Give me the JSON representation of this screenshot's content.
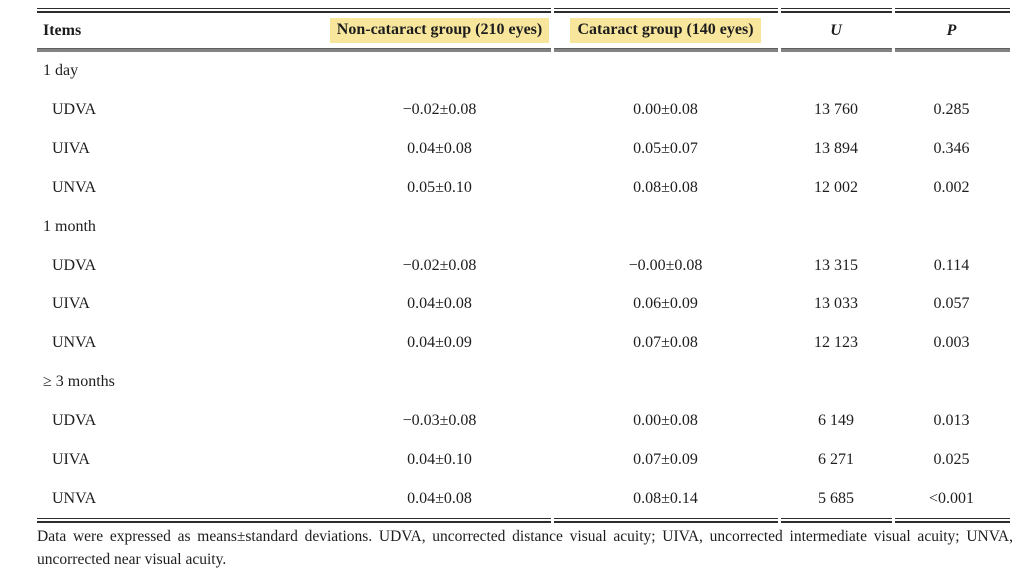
{
  "table": {
    "columns": {
      "items": "Items",
      "non_cataract": "Non-cataract group (210 eyes)",
      "cataract": "Cataract group (140 eyes)",
      "u": "U",
      "p": "P"
    },
    "highlight_color": "#F7E69C",
    "sections": [
      {
        "label": "1 day",
        "rows": [
          {
            "item": "UDVA",
            "non_cataract": "−0.02±0.08",
            "cataract": "0.00±0.08",
            "u": "13 760",
            "p": "0.285"
          },
          {
            "item": "UIVA",
            "non_cataract": "0.04±0.08",
            "cataract": "0.05±0.07",
            "u": "13 894",
            "p": "0.346"
          },
          {
            "item": "UNVA",
            "non_cataract": "0.05±0.10",
            "cataract": "0.08±0.08",
            "u": "12 002",
            "p": "0.002"
          }
        ]
      },
      {
        "label": "1 month",
        "rows": [
          {
            "item": "UDVA",
            "non_cataract": "−0.02±0.08",
            "cataract": "−0.00±0.08",
            "u": "13 315",
            "p": "0.114"
          },
          {
            "item": "UIVA",
            "non_cataract": "0.04±0.08",
            "cataract": "0.06±0.09",
            "u": "13 033",
            "p": "0.057"
          },
          {
            "item": "UNVA",
            "non_cataract": "0.04±0.09",
            "cataract": "0.07±0.08",
            "u": "12 123",
            "p": "0.003"
          }
        ]
      },
      {
        "label": "≥ 3 months",
        "rows": [
          {
            "item": "UDVA",
            "non_cataract": "−0.03±0.08",
            "cataract": "0.00±0.08",
            "u": "6 149",
            "p": "0.013"
          },
          {
            "item": "UIVA",
            "non_cataract": "0.04±0.10",
            "cataract": "0.07±0.09",
            "u": "6 271",
            "p": "0.025"
          },
          {
            "item": "UNVA",
            "non_cataract": "0.04±0.08",
            "cataract": "0.08±0.14",
            "u": "5 685",
            "p": "<0.001"
          }
        ]
      }
    ],
    "footnote_line1": "Data were expressed as means±standard deviations. UDVA, uncorrected distance visual acuity; UIVA, uncorrected intermediate visual acuity; UNVA,",
    "footnote_line2": "uncorrected near visual acuity."
  }
}
